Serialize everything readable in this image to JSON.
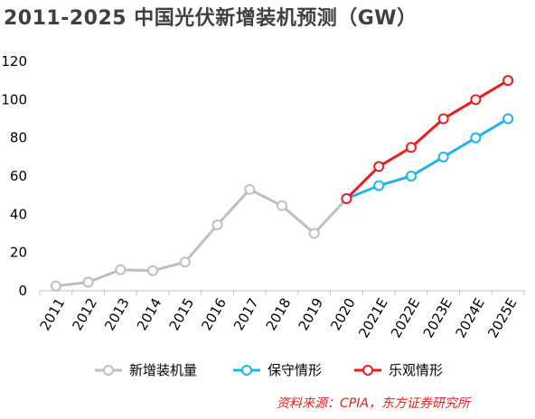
{
  "title": "2011-2025 中国光伏新增装机预测（GW）",
  "source": "资料来源：CPIA，东方证券研究所",
  "colors": {
    "actual": "#bfbfbf",
    "conservative": "#1fb4e8",
    "optimistic": "#e81e1e",
    "axis": "#bfbfbf"
  },
  "chart_data": {
    "type": "line",
    "title": "2011-2025 中国光伏新增装机预测（GW）",
    "xlabel": "",
    "ylabel": "",
    "ylim": [
      0,
      120
    ],
    "yticks": [
      0,
      20,
      40,
      60,
      80,
      100,
      120
    ],
    "grid": false,
    "legend_position": "bottom",
    "categories": [
      "2011",
      "2012",
      "2013",
      "2014",
      "2015",
      "2016",
      "2017",
      "2018",
      "2019",
      "2020",
      "2021E",
      "2022E",
      "2023E",
      "2024E",
      "2025E"
    ],
    "series": [
      {
        "name": "新增装机量",
        "color_key": "actual",
        "values": [
          2.5,
          4.5,
          11,
          10.5,
          15,
          34.5,
          53,
          44.5,
          30,
          48.2,
          null,
          null,
          null,
          null,
          null
        ]
      },
      {
        "name": "保守情形",
        "color_key": "conservative",
        "values": [
          null,
          null,
          null,
          null,
          null,
          null,
          null,
          null,
          null,
          48.2,
          55,
          60,
          70,
          80,
          90
        ]
      },
      {
        "name": "乐观情形",
        "color_key": "optimistic",
        "values": [
          null,
          null,
          null,
          null,
          null,
          null,
          null,
          null,
          null,
          48.2,
          65,
          75,
          90,
          100,
          110
        ]
      }
    ]
  }
}
